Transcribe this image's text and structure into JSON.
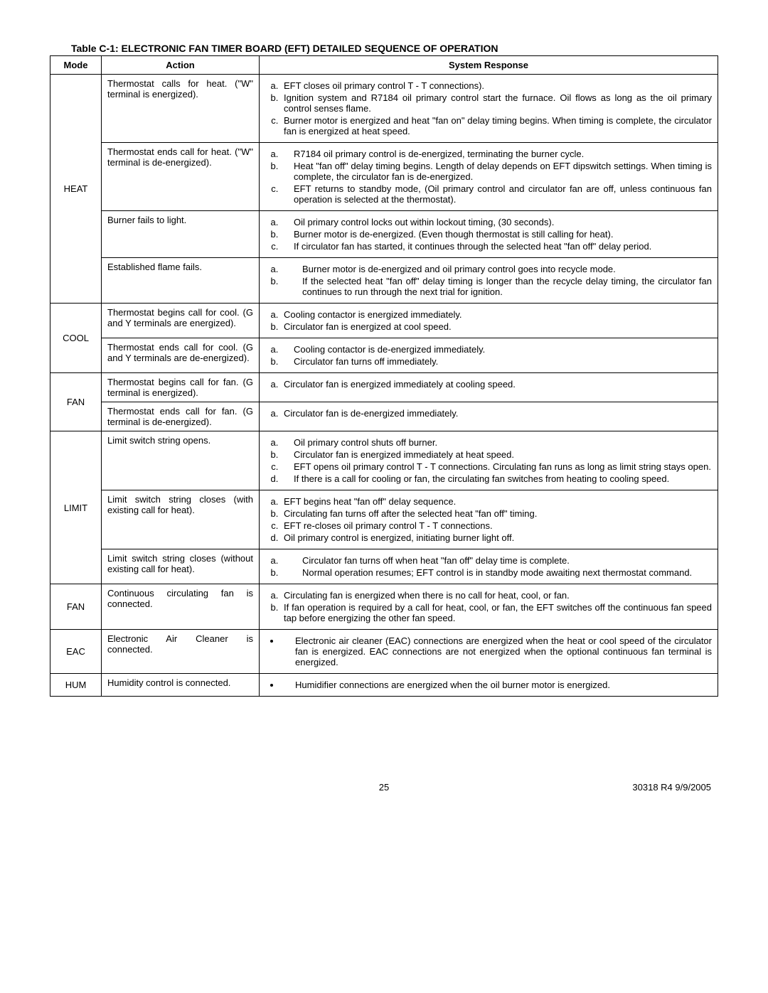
{
  "title": "Table C-1: ELECTRONIC FAN TIMER BOARD (EFT) DETAILED SEQUENCE OF OPERATION",
  "headers": {
    "mode": "Mode",
    "action": "Action",
    "response": "System Response"
  },
  "modes": {
    "heat": "HEAT",
    "cool": "COOL",
    "fan1": "FAN",
    "limit": "LIMIT",
    "fan2": "FAN",
    "eac": "EAC",
    "hum": "HUM"
  },
  "actions": {
    "heat1": "Thermostat calls for heat. (\"W\" terminal is energized).",
    "heat2": "Thermostat ends call for heat. (\"W\" terminal is de-energized).",
    "heat3": "Burner fails to light.",
    "heat4": "Established flame fails.",
    "cool1": "Thermostat begins call for cool. (G and Y terminals are energized).",
    "cool2": "Thermostat ends call for cool. (G and Y terminals are de-energized).",
    "fan1a": "Thermostat begins call for fan. (G terminal is energized).",
    "fan1b": "Thermostat ends call for fan. (G terminal is de-energized).",
    "limit1": "Limit switch string opens.",
    "limit2": "Limit switch string closes (with existing call for heat).",
    "limit3": "Limit switch string closes (without existing call for heat).",
    "fan2": "Continuous circulating fan is connected.",
    "eac": "Electronic Air Cleaner is connected.",
    "hum": "Humidity control is connected."
  },
  "responses": {
    "heat1": {
      "a": "EFT closes oil primary control T - T connections).",
      "b": "Ignition system and R7184 oil primary control start the furnace. Oil flows as long as the oil primary control senses flame.",
      "c": "Burner motor is energized and heat \"fan on\" delay timing begins. When timing is complete, the circulator fan is energized at heat speed."
    },
    "heat2": {
      "a": "R7184 oil primary control is de-energized, terminating the burner cycle.",
      "b": "Heat \"fan off\" delay timing begins. Length of delay depends on EFT dipswitch settings. When timing is complete, the circulator fan is de-energized.",
      "c": "EFT returns to standby mode, (Oil primary control and circulator fan are off, unless continuous fan operation is selected at the thermostat)."
    },
    "heat3": {
      "a": "Oil primary control locks out within lockout timing, (30 seconds).",
      "b": "Burner motor is de-energized. (Even though thermostat is still calling for heat).",
      "c": "If circulator fan has started, it continues through the selected heat \"fan off\" delay period."
    },
    "heat4": {
      "a": "Burner motor is de-energized and oil primary control goes into recycle mode.",
      "b": "If the selected heat \"fan off\" delay timing is longer than the recycle delay timing, the circulator fan continues to run through the next trial for ignition."
    },
    "cool1": {
      "a": "Cooling contactor is energized immediately.",
      "b": "Circulator fan is energized at cool speed."
    },
    "cool2": {
      "a": "Cooling contactor is de-energized immediately.",
      "b": "Circulator fan turns off immediately."
    },
    "fan1a": {
      "a": "Circulator fan is energized immediately at cooling speed."
    },
    "fan1b": {
      "a": "Circulator fan is de-energized immediately."
    },
    "limit1": {
      "a": "Oil primary control shuts off burner.",
      "b": "Circulator fan is energized immediately at heat speed.",
      "c": "EFT opens oil primary control T - T connections. Circulating fan runs as long as limit string stays open.",
      "d": "If there is a call for cooling or fan, the circulating fan switches from heating to cooling speed."
    },
    "limit2": {
      "a": "EFT begins heat \"fan off\" delay sequence.",
      "b": "Circulating fan turns off after the selected heat \"fan off\" timing.",
      "c": "EFT re-closes oil primary control T - T connections.",
      "d": "Oil primary control is energized, initiating burner light off."
    },
    "limit3": {
      "a": "Circulator fan turns off when heat \"fan off\" delay time is complete.",
      "b": "Normal operation resumes; EFT control is in standby mode awaiting next thermostat command."
    },
    "fan2": {
      "a": "Circulating fan is energized when there is no call for heat, cool, or fan.",
      "b": "If fan operation is required by a call for heat, cool, or fan, the EFT switches off the continuous fan speed tap before energizing the other fan speed."
    },
    "eac": {
      "a": "Electronic air cleaner (EAC) connections are energized when the heat or cool speed of the circulator fan is energized. EAC connections are not energized when the optional continuous fan terminal is energized."
    },
    "hum": {
      "a": "Humidifier connections are energized when the oil burner motor is energized."
    }
  },
  "footer": {
    "page": "25",
    "docref": "30318 R4 9/9/2005"
  }
}
